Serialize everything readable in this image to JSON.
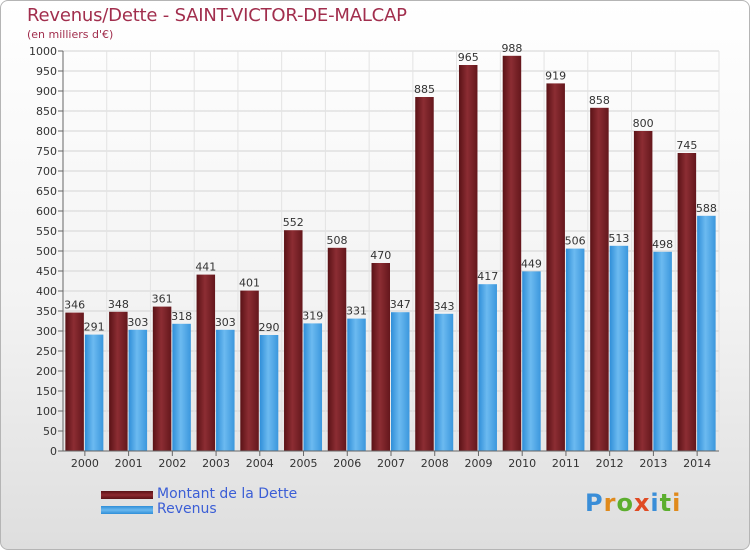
{
  "chart_data": {
    "type": "bar",
    "title": "Revenus/Dette - SAINT-VICTOR-DE-MALCAP",
    "subtitle": "(en milliers d'€)",
    "categories": [
      "2000",
      "2001",
      "2002",
      "2003",
      "2004",
      "2005",
      "2006",
      "2007",
      "2008",
      "2009",
      "2010",
      "2011",
      "2012",
      "2013",
      "2014"
    ],
    "series": [
      {
        "name": "Montant de la Dette",
        "color": "#7a1f25",
        "values": [
          346,
          348,
          361,
          441,
          401,
          552,
          508,
          470,
          885,
          965,
          988,
          919,
          858,
          800,
          745
        ]
      },
      {
        "name": "Revenus",
        "color": "#4aa3e6",
        "values": [
          291,
          303,
          318,
          303,
          290,
          319,
          331,
          347,
          343,
          417,
          449,
          506,
          513,
          498,
          588
        ]
      }
    ],
    "ylim": [
      0,
      1000
    ],
    "yticks": [
      0,
      50,
      100,
      150,
      200,
      250,
      300,
      350,
      400,
      450,
      500,
      550,
      600,
      650,
      700,
      750,
      800,
      850,
      900,
      950,
      1000
    ],
    "grid": true,
    "legend_position": "bottom-left"
  },
  "logo": {
    "text": "Proxiti"
  }
}
